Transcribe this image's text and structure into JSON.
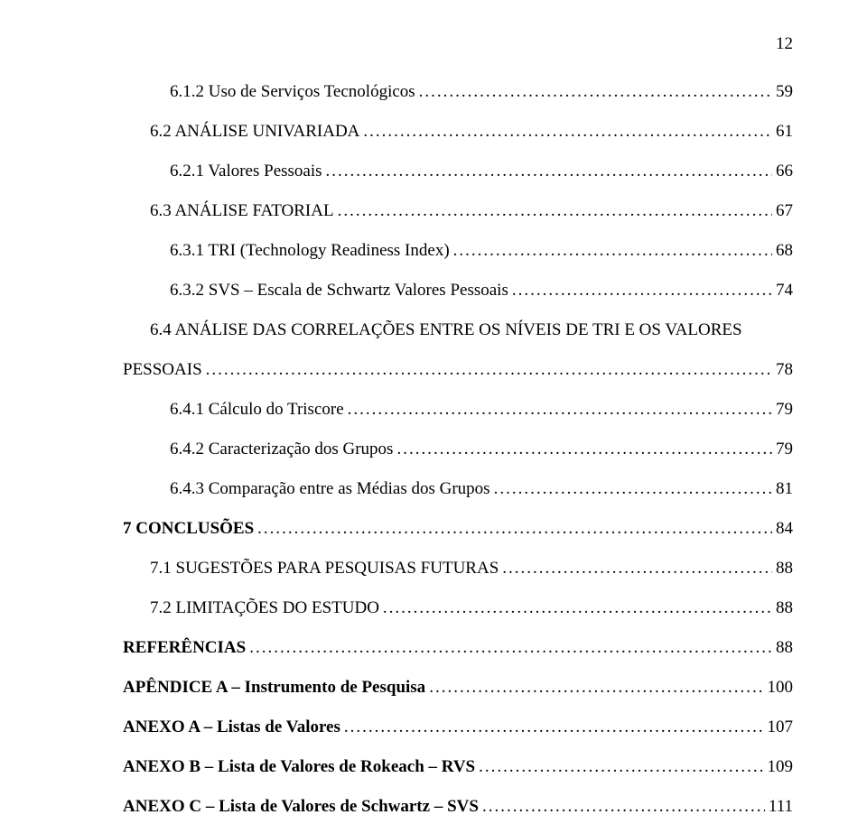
{
  "page_number": "12",
  "entries": [
    {
      "label": "6.1.2 Uso de Serviços Tecnológicos",
      "page": "59",
      "indent": "indent-0",
      "bold": false
    },
    {
      "label": "6.2 ANÁLISE UNIVARIADA",
      "page": "61",
      "indent": "indent-1",
      "bold": false
    },
    {
      "label": "6.2.1 Valores Pessoais",
      "page": "66",
      "indent": "indent-0",
      "bold": false
    },
    {
      "label": "6.3 ANÁLISE FATORIAL",
      "page": "67",
      "indent": "indent-1",
      "bold": false
    },
    {
      "label": "6.3.1 TRI (Technology Readiness Index)",
      "page": "68",
      "indent": "indent-0",
      "bold": false
    },
    {
      "label": "6.3.2 SVS – Escala de Schwartz Valores Pessoais",
      "page": "74",
      "indent": "indent-0",
      "bold": false
    },
    {
      "label": "6.4 ANÁLISE DAS CORRELAÇÕES ENTRE OS NÍVEIS DE TRI E OS VALORES",
      "page": "",
      "indent": "indent-1",
      "bold": false,
      "no_leader": true
    },
    {
      "label": "PESSOAIS",
      "page": "78",
      "indent": "flush",
      "bold": false
    },
    {
      "label": "6.4.1 Cálculo do Triscore",
      "page": "79",
      "indent": "indent-0",
      "bold": false
    },
    {
      "label": "6.4.2 Caracterização dos Grupos",
      "page": "79",
      "indent": "indent-0",
      "bold": false
    },
    {
      "label": "6.4.3 Comparação entre as Médias dos Grupos",
      "page": "81",
      "indent": "indent-0",
      "bold": false
    },
    {
      "label": "7 CONCLUSÕES",
      "page": "84",
      "indent": "flush",
      "bold": true
    },
    {
      "label": "7.1 SUGESTÕES PARA PESQUISAS FUTURAS",
      "page": "88",
      "indent": "indent-1",
      "bold": false
    },
    {
      "label": "7.2 LIMITAÇÕES DO ESTUDO",
      "page": "88",
      "indent": "indent-1",
      "bold": false
    },
    {
      "label": "REFERÊNCIAS",
      "page": "88",
      "indent": "flush",
      "bold": true
    },
    {
      "label": "APÊNDICE A – Instrumento de Pesquisa",
      "page": "100",
      "indent": "flush",
      "bold": true
    },
    {
      "label": "ANEXO A – Listas de Valores",
      "page": "107",
      "indent": "flush",
      "bold": true
    },
    {
      "label": "ANEXO B – Lista de Valores de Rokeach – RVS",
      "page": "109",
      "indent": "flush",
      "bold": true
    },
    {
      "label": "ANEXO C – Lista de Valores de Schwartz – SVS",
      "page": "111",
      "indent": "flush",
      "bold": true
    }
  ]
}
